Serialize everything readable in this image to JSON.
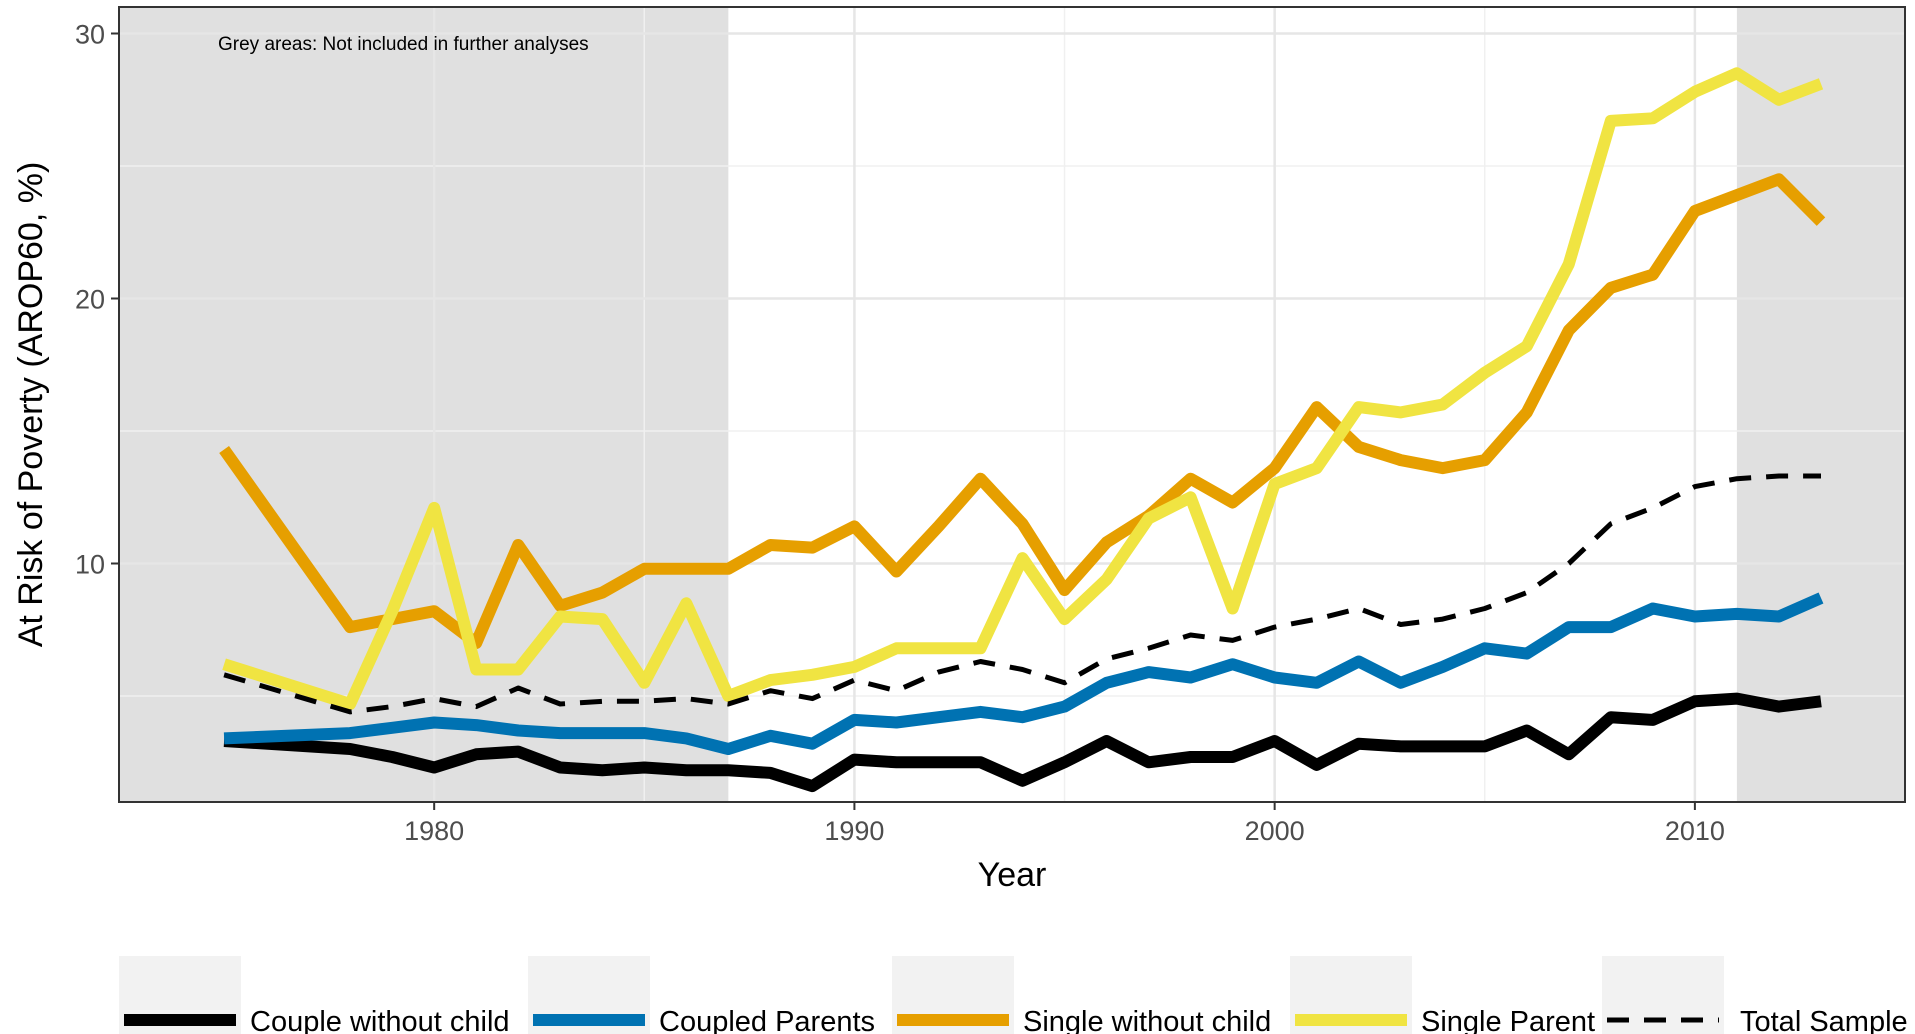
{
  "chart_data": {
    "type": "line",
    "annotation": "Grey areas: Not included in further analyses",
    "xlabel": "Year",
    "ylabel": "At Risk of Poverty (AROP60, %)",
    "xlim": [
      1972.5,
      2015
    ],
    "ylim": [
      1,
      31
    ],
    "x_ticks": [
      1980,
      1990,
      2000,
      2010
    ],
    "y_ticks": [
      10,
      20,
      30
    ],
    "grey_ranges": [
      [
        1972.5,
        1987
      ],
      [
        2011,
        2015
      ]
    ],
    "grid": true,
    "legend_position": "bottom",
    "x": [
      1975,
      1978,
      1979,
      1980,
      1981,
      1982,
      1983,
      1984,
      1985,
      1986,
      1987,
      1988,
      1989,
      1990,
      1991,
      1992,
      1993,
      1994,
      1995,
      1996,
      1997,
      1998,
      1999,
      2000,
      2001,
      2002,
      2003,
      2004,
      2005,
      2006,
      2007,
      2008,
      2009,
      2010,
      2011,
      2012,
      2013
    ],
    "series": [
      {
        "name": "Couple without child",
        "color": "#000000",
        "dash": "solid",
        "values": [
          3.3,
          3.0,
          2.7,
          2.3,
          2.8,
          2.9,
          2.3,
          2.2,
          2.3,
          2.2,
          2.2,
          2.1,
          1.6,
          2.6,
          2.5,
          2.5,
          2.5,
          1.8,
          2.5,
          3.3,
          2.5,
          2.7,
          2.7,
          3.3,
          2.4,
          3.2,
          3.1,
          3.1,
          3.1,
          3.7,
          2.8,
          4.2,
          4.1,
          4.8,
          4.9,
          4.6,
          4.8
        ]
      },
      {
        "name": "Coupled Parents",
        "color": "#0072B2",
        "dash": "solid",
        "values": [
          3.4,
          3.6,
          3.8,
          4.0,
          3.9,
          3.7,
          3.6,
          3.6,
          3.6,
          3.4,
          3.0,
          3.5,
          3.2,
          4.1,
          4.0,
          4.2,
          4.4,
          4.2,
          4.6,
          5.5,
          5.9,
          5.7,
          6.2,
          5.7,
          5.5,
          6.3,
          5.5,
          6.1,
          6.8,
          6.6,
          7.6,
          7.6,
          8.3,
          8.0,
          8.1,
          8.0,
          8.7
        ]
      },
      {
        "name": "Single without child",
        "color": "#E69F00",
        "dash": "solid",
        "values": [
          14.3,
          7.6,
          7.9,
          8.2,
          7.0,
          10.7,
          8.4,
          8.9,
          9.8,
          9.8,
          9.8,
          10.7,
          10.6,
          11.4,
          9.7,
          11.4,
          13.2,
          11.5,
          9.0,
          10.8,
          11.8,
          13.2,
          12.3,
          13.6,
          15.9,
          14.4,
          13.9,
          13.6,
          13.9,
          15.7,
          18.8,
          20.4,
          20.9,
          23.3,
          23.9,
          24.5,
          22.9
        ]
      },
      {
        "name": "Single Parent",
        "color": "#F0E442",
        "dash": "solid",
        "values": [
          6.2,
          4.7,
          8.2,
          12.1,
          6.0,
          6.0,
          8.0,
          7.9,
          5.5,
          8.5,
          5.0,
          5.6,
          5.8,
          6.1,
          6.8,
          6.8,
          6.8,
          10.2,
          7.9,
          9.4,
          11.7,
          12.5,
          8.3,
          13.0,
          13.6,
          15.9,
          15.7,
          16.0,
          17.2,
          18.2,
          21.3,
          26.7,
          26.8,
          27.8,
          28.5,
          27.5,
          28.1
        ]
      },
      {
        "name": "Total Sample",
        "color": "#000000",
        "dash": "dashed",
        "values": [
          5.8,
          4.4,
          4.6,
          4.9,
          4.6,
          5.3,
          4.7,
          4.8,
          4.8,
          4.9,
          4.7,
          5.2,
          4.9,
          5.6,
          5.2,
          5.9,
          6.3,
          6.0,
          5.5,
          6.4,
          6.8,
          7.3,
          7.1,
          7.6,
          7.9,
          8.3,
          7.7,
          7.9,
          8.3,
          8.9,
          10.0,
          11.5,
          12.1,
          12.9,
          13.2,
          13.3,
          13.3
        ]
      }
    ]
  }
}
